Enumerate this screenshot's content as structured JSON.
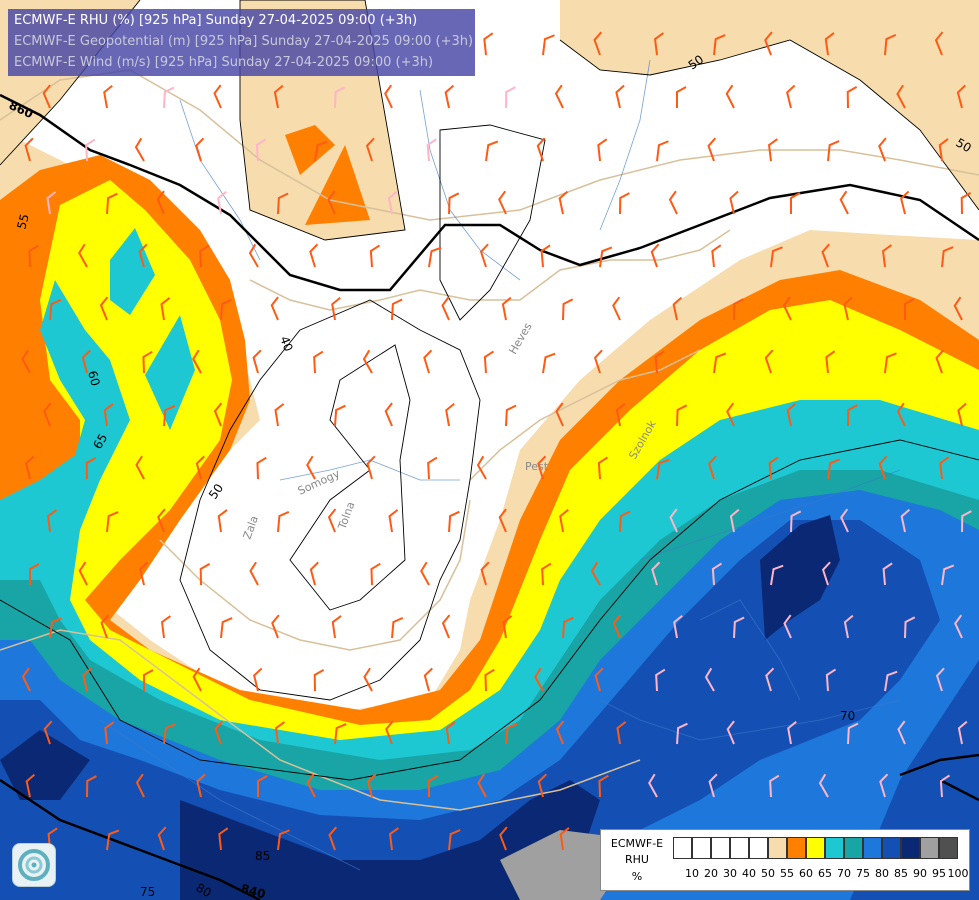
{
  "header": {
    "line1": "ECMWF-E RHU (%) [925 hPa] Sunday 27-04-2025 09:00 (+3h)",
    "line2": "ECMWF-E Geopotential (m) [925 hPa] Sunday 27-04-2025 09:00 (+3h)",
    "line3": "ECMWF-E Wind (m/s) [925 hPa] Sunday 27-04-2025 09:00 (+3h)"
  },
  "legend": {
    "line1": "ECMWF-E",
    "line2": "RHU",
    "line3": "%",
    "ticks": [
      "10",
      "20",
      "30",
      "40",
      "50",
      "55",
      "60",
      "65",
      "70",
      "75",
      "80",
      "85",
      "90",
      "95",
      "100"
    ],
    "colors": [
      "#ffffff",
      "#ffffff",
      "#ffffff",
      "#ffffff",
      "#ffffff",
      "#f7dcae",
      "#ff8000",
      "#ffff00",
      "#1ec8d2",
      "#19a5a5",
      "#1e78dc",
      "#1450b4",
      "#0a2873",
      "#a0a0a0",
      "#505050"
    ]
  },
  "contour_labels": {
    "geo": [
      "860",
      "840"
    ],
    "rhu": [
      "50",
      "50",
      "55",
      "60",
      "65",
      "50",
      "40",
      "70",
      "75",
      "80",
      "85"
    ]
  },
  "river_labels": [
    "Zala",
    "Somogy",
    "Tolna",
    "Heves",
    "Pest",
    "Szolnok"
  ],
  "colors": {
    "rhu_50_55": "#f7dcae",
    "rhu_55_60": "#ff8000",
    "rhu_60_65": "#ffff00",
    "rhu_65_70": "#1ec8d2",
    "rhu_70_75": "#19a5a5",
    "rhu_75_80": "#1e78dc",
    "rhu_80_85": "#1450b4",
    "rhu_85_90": "#0a2873",
    "rhu_90_95": "#a0a0a0",
    "wind_barb_strong": "#ff5a14",
    "wind_barb_light": "#ffb4c8",
    "title_bg": "#4646a5"
  }
}
